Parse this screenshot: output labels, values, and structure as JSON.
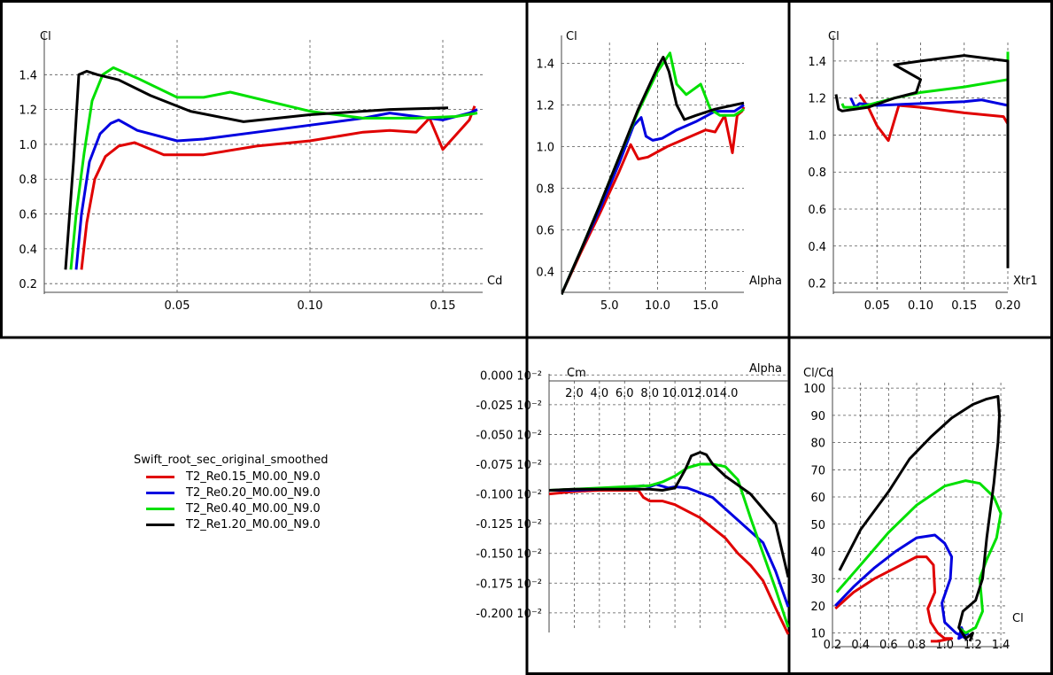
{
  "legend": {
    "title": "Swift_root_sec_original_smoothed",
    "entries": [
      {
        "label": "T2_Re0.15_M0.00_N9.0",
        "color": "#e00000"
      },
      {
        "label": "T2_Re0.20_M0.00_N9.0",
        "color": "#0000e0"
      },
      {
        "label": "T2_Re0.40_M0.00_N9.0",
        "color": "#00e000"
      },
      {
        "label": "T2_Re1.20_M0.00_N9.0",
        "color": "#000000"
      }
    ]
  },
  "chart_data": [
    {
      "id": "cl-cd",
      "type": "line",
      "xlabel": "Cd",
      "ylabel": "Cl",
      "xlim": [
        0.0,
        0.165
      ],
      "ylim": [
        0.15,
        1.6
      ],
      "xticks": [
        "0.05",
        "0.10",
        "0.15"
      ],
      "xtick_values": [
        0.05,
        0.1,
        0.15
      ],
      "yticks": [
        "0.2",
        "0.4",
        "0.6",
        "0.8",
        "1.0",
        "1.2",
        "1.4"
      ],
      "ytick_values": [
        0.2,
        0.4,
        0.6,
        0.8,
        1.0,
        1.2,
        1.4
      ],
      "series": [
        {
          "name": "T2_Re0.15_M0.00_N9.0",
          "color": "#e00000",
          "x": [
            0.014,
            0.016,
            0.019,
            0.023,
            0.028,
            0.034,
            0.045,
            0.06,
            0.08,
            0.1,
            0.12,
            0.13,
            0.14,
            0.145,
            0.15,
            0.16,
            0.162
          ],
          "y": [
            0.28,
            0.55,
            0.8,
            0.93,
            0.99,
            1.01,
            0.94,
            0.94,
            0.99,
            1.02,
            1.07,
            1.08,
            1.07,
            1.15,
            0.97,
            1.14,
            1.22
          ]
        },
        {
          "name": "T2_Re0.20_M0.00_N9.0",
          "color": "#0000e0",
          "x": [
            0.012,
            0.014,
            0.017,
            0.021,
            0.025,
            0.028,
            0.035,
            0.05,
            0.06,
            0.08,
            0.1,
            0.12,
            0.13,
            0.14,
            0.15,
            0.16,
            0.163
          ],
          "y": [
            0.28,
            0.6,
            0.9,
            1.06,
            1.12,
            1.14,
            1.08,
            1.02,
            1.03,
            1.07,
            1.11,
            1.15,
            1.18,
            1.16,
            1.14,
            1.18,
            1.2
          ]
        },
        {
          "name": "T2_Re0.40_M0.00_N9.0",
          "color": "#00e000",
          "x": [
            0.01,
            0.012,
            0.015,
            0.018,
            0.022,
            0.026,
            0.035,
            0.05,
            0.06,
            0.07,
            0.1,
            0.12,
            0.14,
            0.155,
            0.163
          ],
          "y": [
            0.28,
            0.6,
            0.95,
            1.25,
            1.4,
            1.44,
            1.38,
            1.27,
            1.27,
            1.3,
            1.19,
            1.15,
            1.15,
            1.16,
            1.18
          ]
        },
        {
          "name": "T2_Re1.20_M0.00_N9.0",
          "color": "#000000",
          "x": [
            0.008,
            0.011,
            0.013,
            0.016,
            0.02,
            0.028,
            0.04,
            0.055,
            0.075,
            0.1,
            0.13,
            0.152
          ],
          "y": [
            0.28,
            0.9,
            1.4,
            1.42,
            1.4,
            1.37,
            1.28,
            1.19,
            1.13,
            1.17,
            1.2,
            1.21
          ]
        }
      ]
    },
    {
      "id": "cl-alpha",
      "type": "line",
      "xlabel": "Alpha",
      "ylabel": "Cl",
      "xlim": [
        0.0,
        19.0
      ],
      "ylim": [
        0.3,
        1.5
      ],
      "xticks": [
        "5.0",
        "10.0",
        "15.0"
      ],
      "xtick_values": [
        5,
        10,
        15
      ],
      "yticks": [
        "0.4",
        "0.6",
        "0.8",
        "1.0",
        "1.2",
        "1.4"
      ],
      "ytick_values": [
        0.4,
        0.6,
        0.8,
        1.0,
        1.2,
        1.4
      ],
      "series": [
        {
          "name": "T2_Re0.15_M0.00_N9.0",
          "color": "#e00000",
          "x": [
            0,
            2,
            4,
            6,
            7.2,
            8,
            9,
            11,
            13,
            15,
            16,
            17,
            17.8,
            18.3,
            18.8,
            19
          ],
          "y": [
            0.29,
            0.49,
            0.68,
            0.88,
            1.01,
            0.94,
            0.95,
            1.0,
            1.04,
            1.08,
            1.07,
            1.15,
            0.97,
            1.15,
            1.17,
            1.19
          ]
        },
        {
          "name": "T2_Re0.20_M0.00_N9.0",
          "color": "#0000e0",
          "x": [
            0,
            2,
            4,
            6,
            7.5,
            8.3,
            8.8,
            9.5,
            10.5,
            12,
            14,
            16,
            17,
            18,
            19
          ],
          "y": [
            0.29,
            0.5,
            0.7,
            0.92,
            1.1,
            1.14,
            1.05,
            1.03,
            1.04,
            1.08,
            1.12,
            1.17,
            1.17,
            1.17,
            1.2
          ]
        },
        {
          "name": "T2_Re0.40_M0.00_N9.0",
          "color": "#00e000",
          "x": [
            0,
            2,
            4,
            6,
            8,
            10,
            11.3,
            12,
            13,
            14.5,
            15.5,
            16.5,
            18,
            19
          ],
          "y": [
            0.29,
            0.5,
            0.72,
            0.95,
            1.17,
            1.36,
            1.45,
            1.3,
            1.25,
            1.3,
            1.18,
            1.15,
            1.15,
            1.18
          ]
        },
        {
          "name": "T2_Re1.20_M0.00_N9.0",
          "color": "#000000",
          "x": [
            0,
            2,
            4,
            6,
            8,
            10,
            10.6,
            11.2,
            12,
            12.8,
            14,
            16,
            18,
            19
          ],
          "y": [
            0.29,
            0.5,
            0.72,
            0.95,
            1.18,
            1.38,
            1.43,
            1.36,
            1.2,
            1.13,
            1.15,
            1.18,
            1.2,
            1.21
          ]
        }
      ]
    },
    {
      "id": "cl-xtr1",
      "type": "line",
      "xlabel": "Xtr1",
      "ylabel": "Cl",
      "xlim": [
        0.0,
        0.2
      ],
      "ylim": [
        0.15,
        1.5
      ],
      "xticks": [
        "0.05",
        "0.10",
        "0.15",
        "0.20"
      ],
      "xtick_values": [
        0.05,
        0.1,
        0.15,
        0.2
      ],
      "yticks": [
        "0.2",
        "0.4",
        "0.6",
        "0.8",
        "1.0",
        "1.2",
        "1.4"
      ],
      "ytick_values": [
        0.2,
        0.4,
        0.6,
        0.8,
        1.0,
        1.2,
        1.4
      ],
      "series": [
        {
          "name": "T2_Re0.15_M0.00_N9.0",
          "color": "#e00000",
          "x": [
            0.03,
            0.04,
            0.05,
            0.063,
            0.075,
            0.1,
            0.15,
            0.195,
            0.2
          ],
          "y": [
            1.22,
            1.15,
            1.05,
            0.97,
            1.16,
            1.15,
            1.12,
            1.1,
            1.06
          ]
        },
        {
          "name": "T2_Re0.20_M0.00_N9.0",
          "color": "#0000e0",
          "x": [
            0.02,
            0.025,
            0.03,
            0.05,
            0.1,
            0.15,
            0.17,
            0.2
          ],
          "y": [
            1.2,
            1.15,
            1.17,
            1.16,
            1.17,
            1.18,
            1.19,
            1.16
          ]
        },
        {
          "name": "T2_Re0.40_M0.00_N9.0",
          "color": "#00e000",
          "x": [
            0.01,
            0.012,
            0.03,
            0.07,
            0.1,
            0.15,
            0.2,
            0.2,
            0.2
          ],
          "y": [
            1.17,
            1.15,
            1.15,
            1.2,
            1.23,
            1.26,
            1.3,
            1.4,
            1.45
          ]
        },
        {
          "name": "T2_Re1.20_M0.00_N9.0",
          "color": "#000000",
          "x": [
            0.003,
            0.006,
            0.01,
            0.04,
            0.07,
            0.095,
            0.1,
            0.07,
            0.1,
            0.15,
            0.2,
            0.2
          ],
          "y": [
            1.22,
            1.14,
            1.13,
            1.15,
            1.2,
            1.23,
            1.3,
            1.38,
            1.4,
            1.43,
            1.4,
            0.28
          ]
        }
      ]
    },
    {
      "id": "cm-alpha",
      "type": "line",
      "xlabel": "Alpha",
      "ylabel": "Cm",
      "xlim": [
        0.0,
        19.0
      ],
      "ylim": [
        -0.215,
        -0.005
      ],
      "xticks": [
        "2.0",
        "4.0",
        "6.0",
        "8.0",
        "10.0",
        "12.0",
        "14.0"
      ],
      "xtick_values": [
        2,
        4,
        6,
        8,
        10,
        12,
        14
      ],
      "yticks": [
        "-0.200 10⁻²",
        "-0.175 10⁻²",
        "-0.150 10⁻²",
        "-0.125 10⁻²",
        "-0.100 10⁻²",
        "-0.075 10⁻²",
        "-0.050 10⁻²",
        "-0.025 10⁻²",
        "0.000 10⁻²"
      ],
      "ytick_values": [
        -0.2,
        -0.175,
        -0.15,
        -0.125,
        -0.1,
        -0.075,
        -0.05,
        -0.025,
        0.0
      ],
      "series": [
        {
          "name": "T2_Re0.15_M0.00_N9.0",
          "color": "#e00000",
          "x": [
            0,
            2,
            4,
            6,
            7.1,
            7.5,
            8,
            9,
            10,
            12,
            14,
            15,
            16,
            17,
            18,
            19
          ],
          "y": [
            -0.1,
            -0.098,
            -0.097,
            -0.097,
            -0.097,
            -0.103,
            -0.106,
            -0.106,
            -0.109,
            -0.12,
            -0.137,
            -0.15,
            -0.16,
            -0.173,
            -0.196,
            -0.218
          ]
        },
        {
          "name": "T2_Re0.20_M0.00_N9.0",
          "color": "#0000e0",
          "x": [
            0,
            2,
            4,
            6,
            7.5,
            8,
            8.5,
            9.5,
            10,
            11,
            13,
            15,
            17,
            18,
            19
          ],
          "y": [
            -0.097,
            -0.097,
            -0.096,
            -0.095,
            -0.093,
            -0.094,
            -0.092,
            -0.095,
            -0.094,
            -0.095,
            -0.103,
            -0.122,
            -0.141,
            -0.165,
            -0.195
          ]
        },
        {
          "name": "T2_Re0.40_M0.00_N9.0",
          "color": "#00e000",
          "x": [
            0,
            2,
            4,
            6,
            8,
            9,
            10,
            11,
            12,
            13,
            14,
            15,
            16,
            17,
            18,
            19
          ],
          "y": [
            -0.097,
            -0.096,
            -0.095,
            -0.094,
            -0.093,
            -0.09,
            -0.085,
            -0.078,
            -0.075,
            -0.075,
            -0.077,
            -0.088,
            -0.12,
            -0.15,
            -0.18,
            -0.212
          ]
        },
        {
          "name": "T2_Re1.20_M0.00_N9.0",
          "color": "#000000",
          "x": [
            0,
            2,
            4,
            6,
            7,
            8,
            9,
            10,
            10.8,
            11.3,
            12,
            12.5,
            13,
            14,
            16,
            18,
            19
          ],
          "y": [
            -0.097,
            -0.096,
            -0.096,
            -0.096,
            -0.096,
            -0.096,
            -0.097,
            -0.095,
            -0.08,
            -0.068,
            -0.065,
            -0.067,
            -0.075,
            -0.085,
            -0.1,
            -0.125,
            -0.17
          ]
        }
      ]
    },
    {
      "id": "clcd-cl",
      "type": "line",
      "xlabel": "Cl",
      "ylabel": "Cl/Cd",
      "xlim": [
        0.2,
        1.45
      ],
      "ylim": [
        5,
        102
      ],
      "xticks": [
        "0.2",
        "0.4",
        "0.6",
        "0.8",
        "1.0",
        "1.2",
        "1.4"
      ],
      "xtick_values": [
        0.2,
        0.4,
        0.6,
        0.8,
        1.0,
        1.2,
        1.4
      ],
      "yticks": [
        "10",
        "20",
        "30",
        "40",
        "50",
        "60",
        "70",
        "80",
        "90",
        "100"
      ],
      "ytick_values": [
        10,
        20,
        30,
        40,
        50,
        60,
        70,
        80,
        90,
        100
      ],
      "series": [
        {
          "name": "T2_Re0.15_M0.00_N9.0",
          "color": "#e00000",
          "x": [
            0.22,
            0.35,
            0.5,
            0.65,
            0.8,
            0.87,
            0.92,
            0.93,
            0.88,
            0.9,
            0.95,
            1.0,
            1.05,
            0.95,
            0.9
          ],
          "y": [
            19,
            25,
            30,
            34,
            38,
            38,
            35,
            25,
            19,
            14,
            10,
            8,
            8,
            7,
            7
          ]
        },
        {
          "name": "T2_Re0.20_M0.00_N9.0",
          "color": "#0000e0",
          "x": [
            0.22,
            0.35,
            0.5,
            0.65,
            0.8,
            0.93,
            1.0,
            1.05,
            1.04,
            0.98,
            1.0,
            1.08,
            1.12,
            1.15,
            1.12,
            1.1,
            1.17
          ],
          "y": [
            20,
            27,
            34,
            40,
            45,
            46,
            43,
            38,
            30,
            21,
            14,
            10,
            9,
            8,
            12,
            8,
            10
          ]
        },
        {
          "name": "T2_Re0.40_M0.00_N9.0",
          "color": "#00e000",
          "x": [
            0.23,
            0.4,
            0.6,
            0.8,
            1.0,
            1.15,
            1.25,
            1.35,
            1.4,
            1.37,
            1.3,
            1.25,
            1.27,
            1.22,
            1.15,
            1.1
          ],
          "y": [
            25,
            35,
            47,
            57,
            64,
            66,
            65,
            60,
            54,
            45,
            37,
            30,
            18,
            12,
            10,
            12
          ]
        },
        {
          "name": "T2_Re1.20_M0.00_N9.0",
          "color": "#000000",
          "x": [
            0.25,
            0.4,
            0.6,
            0.75,
            0.9,
            1.05,
            1.2,
            1.3,
            1.38,
            1.39,
            1.38,
            1.35,
            1.3,
            1.27,
            1.22,
            1.13,
            1.1,
            1.15,
            1.2,
            1.18
          ],
          "y": [
            33,
            48,
            62,
            74,
            82,
            89,
            94,
            96,
            97,
            90,
            80,
            65,
            45,
            30,
            22,
            18,
            12,
            8,
            10,
            7
          ]
        }
      ]
    }
  ]
}
